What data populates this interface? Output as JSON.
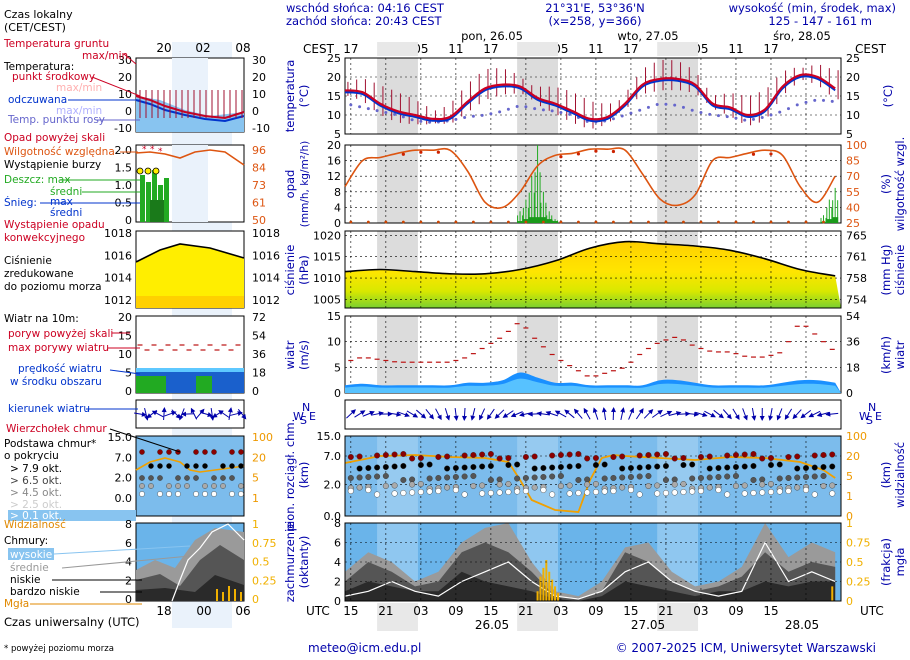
{
  "header": {
    "sunrise": "wschód słońca: 04:16 CEST",
    "sunset": "zachód słońca: 20:43 CEST",
    "coords": "21°31'E, 53°36'N",
    "grid": "(x=258, y=366)",
    "elev_title": "wysokość (min, środek, max)",
    "elev_values": "125 - 147 - 161 m",
    "tz_local": "CEST",
    "days": [
      "pon, 26.05",
      "wto, 27.05",
      "śro, 28.05"
    ],
    "hours_top": [
      "17",
      "23",
      "05",
      "11",
      "17",
      "23",
      "05",
      "11",
      "17",
      "23",
      "05",
      "11",
      "17"
    ]
  },
  "legend": {
    "time_local": "Czas lokalny",
    "time_local_sub": "(CET/CEST)",
    "leg_hours": [
      "20",
      "02",
      "08"
    ],
    "soil": "Temperatura gruntu",
    "soil_sub": "max/min",
    "temp": "Temperatura:",
    "temp_mid": "punkt środkowy",
    "temp_minmax": "max/min",
    "temp_felt": "odczuwana",
    "temp_felt_minmax": "max/min",
    "dew": "Temp. punktu rosy",
    "precip_over": "Opad powyżej skali",
    "humidity": "Wilgotność względna",
    "storm": "Wystąpienie burzy",
    "rain": "Deszcz: max",
    "rain_mid": "średni",
    "snow": "Śnieg:",
    "snow_max": "max",
    "snow_mid": "średni",
    "precip_occ": "Wystąpienie opadu",
    "precip_occ2": "konwekcyjnego",
    "pressure": "Ciśnienie",
    "pressure2": "zredukowane",
    "pressure3": "do poziomu morza",
    "wind": "Wiatr na 10m:",
    "gust_over": "poryw powyżej skali",
    "gust": "max porywy wiatru",
    "wind_speed": "prędkość wiatru",
    "wind_speed2": "w środku obszaru",
    "wind_dir": "kierunek wiatru",
    "cloud_top": "Wierzchołek chmur",
    "cloud_base": "Podstawa chmur*",
    "cloud_base2": "o pokryciu",
    "okt": [
      "> 7.9 okt.",
      "> 6.5 okt.",
      "> 4.5 okt.",
      "> 2.5 okt.",
      "> 0.1 okt."
    ],
    "visibility": "Widzialność",
    "clouds": "Chmury:",
    "cl_high": "wysokie",
    "cl_mid": "średnie",
    "cl_low": "niskie",
    "cl_vlow": "bardzo niskie",
    "fog": "Mgła",
    "utc_label": "Czas uniwersalny (UTC)",
    "utc_hours": [
      "18",
      "00",
      "06"
    ],
    "footnote": "* powyżej poziomu morza",
    "leg_ticks": {
      "temp": [
        "30",
        "20",
        "10",
        "0",
        "-10"
      ],
      "precip": [
        "2.0",
        "1.5",
        "1.0",
        "0.5",
        "0"
      ],
      "hum": [
        "96",
        "84",
        "73",
        "61",
        "50"
      ],
      "press": [
        "1018",
        "1016",
        "1014",
        "1012"
      ],
      "wind": [
        "20",
        "15",
        "10",
        "5",
        "0"
      ],
      "wind_kmh": [
        "72",
        "54",
        "36",
        "18",
        "0"
      ],
      "cbase": [
        "15.0",
        "7.0",
        "2.0",
        "0.0"
      ],
      "vis": [
        "100",
        "20",
        "5",
        "1",
        "0"
      ],
      "cl": [
        "8",
        "6",
        "4",
        "2",
        "0"
      ],
      "fog": [
        "1",
        "0.75",
        "0.5",
        "0.25",
        "0"
      ]
    }
  },
  "axes": {
    "temp_label": "temperatura",
    "temp_unit": "(°C)",
    "temp_ticks": [
      "25",
      "20",
      "15",
      "10",
      "5"
    ],
    "precip_label": "opad",
    "precip_unit": "(mm/h, kg/m²/h)",
    "precip_ticks": [
      "20",
      "16",
      "12",
      "8",
      "4",
      "0"
    ],
    "hum_label": "wilgotność wzgl.",
    "hum_unit": "(%)",
    "hum_ticks": [
      "100",
      "85",
      "70",
      "55",
      "40",
      "25"
    ],
    "press_label": "ciśnienie",
    "press_unit": "(hPa)",
    "press_ticks": [
      "1020",
      "1015",
      "1010",
      "1005"
    ],
    "mmhg_label": "ciśnienie",
    "mmhg_unit": "(mm Hg)",
    "mmhg_ticks": [
      "765",
      "761",
      "758",
      "754"
    ],
    "wind_label": "wiatr",
    "wind_unit": "(m/s)",
    "wind_ticks": [
      "15",
      "10",
      "5",
      "0"
    ],
    "kmh_unit": "(km/h)",
    "kmh_ticks": [
      "54",
      "36",
      "18",
      "0"
    ],
    "dir_letters": [
      "N",
      "W",
      "S",
      "E"
    ],
    "cloud_label": "pion. rozciągł. chm.",
    "cloud_unit": "(km)",
    "cloud_ticks": [
      "15.0",
      "7.0",
      "2.0",
      "0.0"
    ],
    "vis_label": "widzialność",
    "vis_unit": "(km)",
    "vis_ticks": [
      "100",
      "20",
      "5",
      "1",
      "0"
    ],
    "cc_label": "zachmurzenie",
    "cc_unit": "(oktanty)",
    "cc_ticks": [
      "8",
      "6",
      "4",
      "2",
      "0"
    ],
    "fog_label": "mgła",
    "fog_unit": "(frakcja)",
    "fog_ticks": [
      "1",
      "0.75",
      "0.5",
      "0.25",
      "0"
    ]
  },
  "footer": {
    "utc": "UTC",
    "hours_bottom": [
      "15",
      "21",
      "03",
      "09",
      "15",
      "21",
      "03",
      "09",
      "15",
      "21",
      "03",
      "09",
      "15"
    ],
    "dates": [
      "26.05",
      "27.05",
      "28.05"
    ],
    "email": "meteo@icm.edu.pl",
    "copyright": "© 2007-2025 ICM, Uniwersytet Warszawski"
  },
  "colors": {
    "temp": "#cc0022",
    "felt": "#0033cc",
    "dew": "#6666cc",
    "humidity": "#dd5511",
    "rain": "#22aa22",
    "wind": "#0077dd",
    "gust": "#bb1111",
    "vis": "#ee9900",
    "fog": "#f0b000",
    "night": "#dcdcdc",
    "panel_blue": "#88c4f0"
  },
  "chart_data": [
    {
      "type": "line",
      "title": "temperatura (°C)",
      "x_hours_from_start": [
        0,
        3,
        6,
        9,
        12,
        15,
        18,
        21,
        24,
        27,
        30,
        33,
        36,
        39,
        42,
        45,
        48,
        51,
        54,
        57,
        60,
        63,
        66,
        69,
        72,
        75,
        78,
        81,
        84
      ],
      "series": [
        {
          "name": "punkt środkowy",
          "values": [
            16.5,
            16,
            13,
            11,
            10,
            9,
            9.5,
            13.5,
            17,
            18,
            17.5,
            14.5,
            13,
            11,
            9,
            9.5,
            13,
            18,
            19.5,
            19.5,
            18,
            13,
            12,
            10,
            11.5,
            17.5,
            20.5,
            20,
            17
          ]
        },
        {
          "name": "odczuwana",
          "values": [
            16,
            15.5,
            12.5,
            10.5,
            9.5,
            8.5,
            9,
            13,
            16.5,
            17.5,
            17,
            14,
            12.5,
            10.5,
            8.5,
            9,
            12.5,
            17.5,
            19,
            19,
            17.5,
            12.5,
            11.5,
            9.5,
            11,
            17,
            20,
            19.5,
            16.5
          ]
        },
        {
          "name": "temp. punktu rosy",
          "values": [
            13,
            12,
            11,
            10,
            8.5,
            8,
            8.5,
            9.5,
            10,
            11,
            12.5,
            11.5,
            11,
            10,
            8,
            8.5,
            10,
            11.5,
            13,
            12.5,
            11,
            10,
            9.5,
            8.5,
            9.5,
            11,
            13,
            14,
            13.5
          ]
        }
      ],
      "ylim": [
        5,
        25
      ]
    },
    {
      "type": "bar",
      "title": "opad (mm/h, kg/m²/h) / wilgotność wzgl. (%)",
      "x_hours_from_start": [
        30,
        31,
        32,
        33,
        34,
        35,
        36,
        82,
        83,
        84
      ],
      "series": [
        {
          "name": "deszcz max",
          "values": [
            3,
            6,
            12,
            20,
            8,
            3,
            1,
            2,
            6,
            9
          ]
        },
        {
          "name": "deszcz średni",
          "values": [
            0.5,
            1,
            1.5,
            1.5,
            1.5,
            1,
            0.5,
            0.3,
            1,
            1.5
          ]
        }
      ],
      "humidity": {
        "x_hours_from_start": [
          0,
          3,
          6,
          9,
          12,
          15,
          18,
          21,
          24,
          27,
          30,
          33,
          36,
          39,
          42,
          45,
          48,
          51,
          54,
          57,
          60,
          63,
          66,
          69,
          72,
          75,
          78,
          81,
          84
        ],
        "values": [
          60,
          85,
          88,
          92,
          95,
          95,
          95,
          75,
          45,
          40,
          55,
          80,
          90,
          92,
          96,
          96,
          95,
          72,
          48,
          42,
          52,
          85,
          88,
          92,
          95,
          90,
          60,
          45,
          70
        ]
      },
      "ylim": [
        0,
        20
      ],
      "y2lim": [
        25,
        100
      ]
    },
    {
      "type": "line",
      "title": "ciśnienie (hPa)",
      "x_hours_from_start": [
        0,
        6,
        12,
        18,
        24,
        30,
        36,
        42,
        48,
        54,
        60,
        66,
        72,
        78,
        84
      ],
      "values": [
        1011.5,
        1012,
        1011.5,
        1011,
        1011,
        1012,
        1014,
        1017,
        1018.5,
        1018,
        1017.5,
        1016.5,
        1014.5,
        1012,
        1010.5
      ],
      "ylim": [
        1003,
        1021
      ]
    },
    {
      "type": "line",
      "title": "wiatr (m/s)",
      "x_hours_from_start": [
        0,
        3,
        6,
        9,
        12,
        15,
        18,
        21,
        24,
        27,
        30,
        33,
        36,
        39,
        42,
        45,
        48,
        51,
        54,
        57,
        60,
        63,
        66,
        69,
        72,
        75,
        78,
        81,
        84
      ],
      "series": [
        {
          "name": "prędkość wiatru",
          "values": [
            1.5,
            1.8,
            1.5,
            1.5,
            1.5,
            1.5,
            1.5,
            2,
            2,
            2.5,
            4,
            3,
            2,
            2,
            1.5,
            1.5,
            1.5,
            1.5,
            2.5,
            2.5,
            2,
            1.5,
            1.5,
            1.5,
            1.5,
            2,
            2.5,
            2.5,
            2
          ]
        },
        {
          "name": "max porywy",
          "values": [
            6,
            7,
            6.5,
            6,
            6,
            6,
            6,
            7,
            9,
            11,
            14,
            10,
            7,
            5,
            3,
            4,
            5,
            8,
            10,
            11,
            9,
            8,
            8,
            7,
            7,
            8,
            14,
            11,
            8
          ]
        }
      ],
      "ylim": [
        0,
        15
      ]
    },
    {
      "type": "scatter",
      "title": "pion. rozciągł. chm. (km) / widzialność (km)",
      "note": "cloud base dots, visibility line",
      "ylim": [
        0,
        15
      ]
    },
    {
      "type": "area",
      "title": "zachmurzenie (oktanty) / mgła (frakcja)",
      "note": "high, middle, low, very low cloud layers",
      "ylim": [
        0,
        8
      ]
    }
  ]
}
